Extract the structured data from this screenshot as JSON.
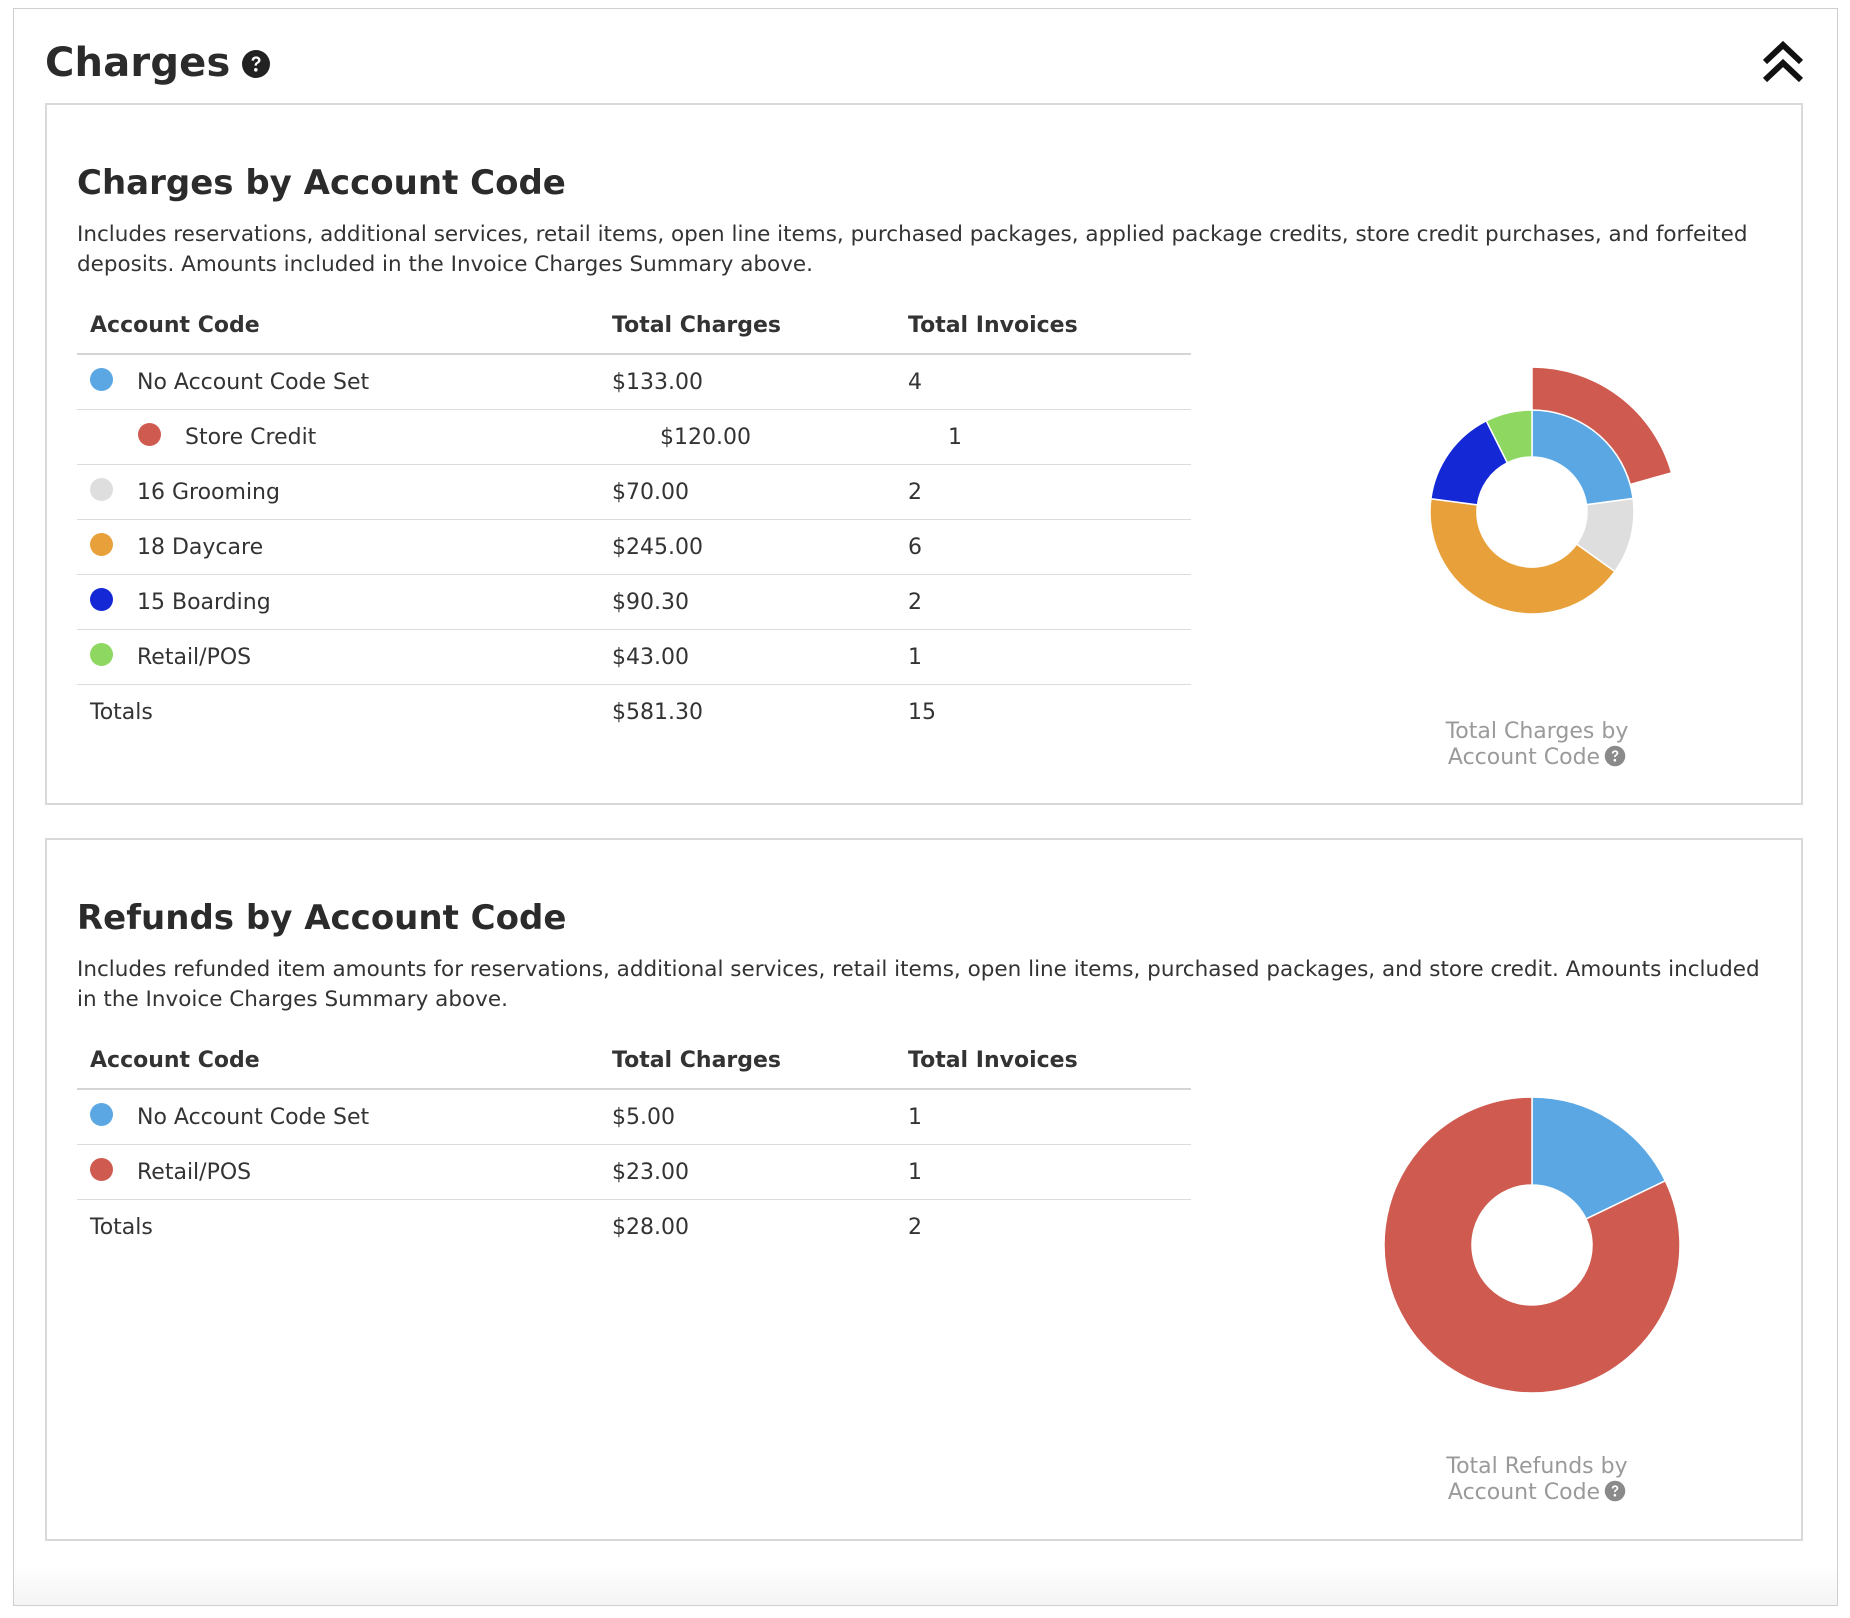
{
  "header": {
    "title": "Charges",
    "help_icon": "question-circle-icon",
    "collapse_icon": "double-chevron-up-icon"
  },
  "colors": {
    "no_code": "#5aa7e3",
    "store_credit": "#cf5a4f",
    "grooming": "#dedede",
    "daycare": "#e8a13a",
    "boarding": "#1428d6",
    "retail": "#8ed760"
  },
  "charges": {
    "title": "Charges by Account Code",
    "description": "Includes reservations, additional services, retail items, open line items, purchased packages, applied package credits, store credit purchases, and forfeited deposits. Amounts included in the Invoice Charges Summary above.",
    "columns": [
      "Account Code",
      "Total Charges",
      "Total Invoices"
    ],
    "rows": [
      {
        "name": "No Account Code Set",
        "amount": "$133.00",
        "invoices": "4",
        "color": "#5aa7e3"
      },
      {
        "name": "Store Credit",
        "amount": "$120.00",
        "invoices": "1",
        "color": "#cf5a4f"
      },
      {
        "name": "16 Grooming",
        "amount": "$70.00",
        "invoices": "2",
        "color": "#dedede"
      },
      {
        "name": "18 Daycare",
        "amount": "$245.00",
        "invoices": "6",
        "color": "#e8a13a"
      },
      {
        "name": "15 Boarding",
        "amount": "$90.30",
        "invoices": "2",
        "color": "#1428d6"
      },
      {
        "name": "Retail/POS",
        "amount": "$43.00",
        "invoices": "1",
        "color": "#8ed760"
      }
    ],
    "totals": {
      "label": "Totals",
      "amount": "$581.30",
      "invoices": "15"
    },
    "chart_caption_line1": "Total Charges by",
    "chart_caption_line2": "Account Code"
  },
  "refunds": {
    "title": "Refunds by Account Code",
    "description": "Includes refunded item amounts for reservations, additional services, retail items, open line items, purchased packages, and store credit. Amounts included in the Invoice Charges Summary above.",
    "columns": [
      "Account Code",
      "Total Charges",
      "Total Invoices"
    ],
    "rows": [
      {
        "name": "No Account Code Set",
        "amount": "$5.00",
        "invoices": "1",
        "color": "#5aa7e3"
      },
      {
        "name": "Retail/POS",
        "amount": "$23.00",
        "invoices": "1",
        "color": "#cf5a4f"
      }
    ],
    "totals": {
      "label": "Totals",
      "amount": "$28.00",
      "invoices": "2"
    },
    "chart_caption_line1": "Total Refunds by",
    "chart_caption_line2": "Account Code"
  },
  "chart_data": [
    {
      "type": "pie",
      "title": "Total Charges by Account Code",
      "categories": [
        "No Account Code Set",
        "16 Grooming",
        "18 Daycare",
        "15 Boarding",
        "Retail/POS"
      ],
      "values": [
        133.0,
        70.0,
        245.0,
        90.3,
        43.0
      ],
      "colors": [
        "#5aa7e3",
        "#dedede",
        "#e8a13a",
        "#1428d6",
        "#8ed760"
      ],
      "sub_slice": {
        "name": "Store Credit",
        "value": 120.0,
        "parent": "No Account Code Set",
        "color": "#cf5a4f"
      },
      "style": "donut"
    },
    {
      "type": "pie",
      "title": "Total Refunds by Account Code",
      "categories": [
        "No Account Code Set",
        "Retail/POS"
      ],
      "values": [
        5.0,
        23.0
      ],
      "colors": [
        "#5aa7e3",
        "#cf5a4f"
      ],
      "style": "donut"
    }
  ]
}
